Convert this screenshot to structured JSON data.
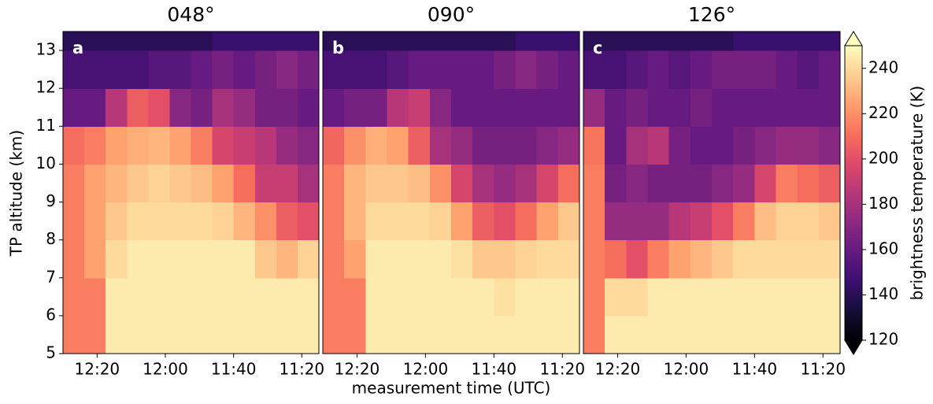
{
  "chart_data": [
    {
      "type": "heatmap",
      "title": "048°",
      "label": "a",
      "ylabel": "TP altitude (km)",
      "xlim": [
        "12:30",
        "11:15"
      ],
      "xticks": [
        "12:20",
        "12:00",
        "11:40",
        "11:20"
      ],
      "ylim": [
        5,
        13.5
      ],
      "yticks": [
        5,
        6,
        7,
        8,
        9,
        10,
        11,
        12,
        13
      ],
      "ybins": [
        5,
        6,
        7,
        8,
        9,
        10,
        11,
        12,
        13,
        13.5
      ],
      "values": [
        [
          215,
          215,
          215,
          215,
          215,
          210,
          160,
          150,
          140
        ],
        [
          215,
          215,
          225,
          225,
          225,
          215,
          160,
          150,
          140
        ],
        [
          245,
          245,
          240,
          235,
          230,
          225,
          185,
          150,
          140
        ],
        [
          245,
          245,
          245,
          240,
          235,
          228,
          205,
          150,
          140
        ],
        [
          245,
          245,
          245,
          240,
          238,
          230,
          200,
          155,
          140
        ],
        [
          245,
          245,
          245,
          240,
          235,
          225,
          170,
          155,
          140
        ],
        [
          245,
          245,
          245,
          240,
          232,
          215,
          165,
          160,
          140
        ],
        [
          245,
          245,
          245,
          238,
          225,
          195,
          180,
          165,
          145
        ],
        [
          245,
          245,
          245,
          230,
          210,
          190,
          175,
          160,
          145
        ],
        [
          245,
          245,
          235,
          220,
          190,
          185,
          165,
          165,
          145
        ],
        [
          245,
          245,
          230,
          205,
          190,
          175,
          165,
          170,
          145
        ],
        [
          245,
          245,
          238,
          200,
          180,
          170,
          160,
          165,
          145
        ]
      ]
    },
    {
      "type": "heatmap",
      "title": "090°",
      "label": "b",
      "xlabel": "measurement time (UTC)",
      "xlim": [
        "12:30",
        "11:15"
      ],
      "xticks": [
        "12:20",
        "12:00",
        "11:40",
        "11:20"
      ],
      "ylim": [
        5,
        13.5
      ],
      "ybins": [
        5,
        6,
        7,
        8,
        9,
        10,
        11,
        12,
        13,
        13.5
      ],
      "values": [
        [
          215,
          215,
          215,
          215,
          215,
          208,
          160,
          150,
          140
        ],
        [
          215,
          215,
          225,
          230,
          230,
          220,
          165,
          150,
          140
        ],
        [
          245,
          245,
          245,
          240,
          235,
          228,
          165,
          150,
          140
        ],
        [
          245,
          245,
          245,
          240,
          235,
          225,
          185,
          155,
          140
        ],
        [
          245,
          245,
          245,
          240,
          232,
          205,
          190,
          160,
          140
        ],
        [
          245,
          245,
          245,
          238,
          220,
          180,
          170,
          160,
          140
        ],
        [
          245,
          245,
          242,
          225,
          195,
          175,
          160,
          160,
          140
        ],
        [
          245,
          245,
          235,
          205,
          180,
          165,
          160,
          160,
          140
        ],
        [
          245,
          242,
          235,
          200,
          175,
          165,
          160,
          165,
          140
        ],
        [
          245,
          245,
          238,
          210,
          180,
          165,
          160,
          170,
          145
        ],
        [
          245,
          245,
          240,
          225,
          195,
          170,
          160,
          165,
          145
        ],
        [
          245,
          245,
          240,
          235,
          210,
          175,
          160,
          160,
          145
        ]
      ]
    },
    {
      "type": "heatmap",
      "title": "126°",
      "label": "c",
      "xlim": [
        "12:30",
        "11:15"
      ],
      "xticks": [
        "12:20",
        "12:00",
        "11:40",
        "11:20"
      ],
      "ylim": [
        5,
        13.5
      ],
      "ybins": [
        5,
        6,
        7,
        8,
        9,
        10,
        11,
        12,
        13,
        13.5
      ],
      "values": [
        [
          215,
          215,
          215,
          215,
          215,
          212,
          175,
          150,
          140
        ],
        [
          245,
          240,
          210,
          175,
          165,
          160,
          160,
          150,
          140
        ],
        [
          245,
          240,
          200,
          175,
          170,
          180,
          165,
          155,
          140
        ],
        [
          245,
          245,
          215,
          175,
          165,
          185,
          160,
          160,
          140
        ],
        [
          245,
          245,
          225,
          185,
          165,
          165,
          160,
          155,
          140
        ],
        [
          245,
          245,
          230,
          190,
          165,
          160,
          165,
          160,
          140
        ],
        [
          245,
          245,
          235,
          200,
          170,
          160,
          160,
          165,
          140
        ],
        [
          245,
          245,
          240,
          215,
          175,
          165,
          160,
          165,
          145
        ],
        [
          245,
          245,
          240,
          232,
          195,
          170,
          160,
          165,
          145
        ],
        [
          245,
          245,
          240,
          238,
          215,
          175,
          160,
          160,
          145
        ],
        [
          245,
          245,
          240,
          238,
          210,
          175,
          160,
          155,
          145
        ],
        [
          245,
          245,
          240,
          235,
          205,
          170,
          160,
          160,
          145
        ]
      ]
    }
  ],
  "colorbar": {
    "label": "brightness temperature (K)",
    "clim": [
      120,
      250
    ],
    "ticks": [
      120,
      140,
      160,
      180,
      200,
      220,
      240
    ]
  }
}
